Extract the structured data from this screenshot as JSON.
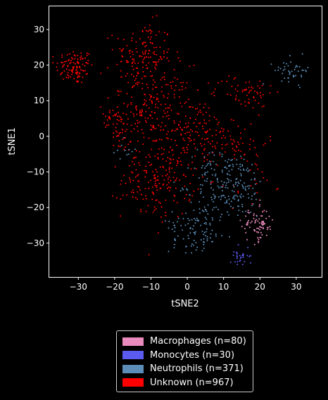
{
  "chart_data": {
    "type": "scatter",
    "title": "",
    "xlabel": "tSNE2",
    "ylabel": "tSNE1",
    "xlim": [
      -38,
      37
    ],
    "ylim": [
      -39.5,
      36.5
    ],
    "xticks": [
      -30,
      -20,
      -10,
      0,
      10,
      20,
      30
    ],
    "yticks": [
      -30,
      -20,
      -10,
      0,
      10,
      20,
      30
    ],
    "grid": false,
    "legend_position": "below plot",
    "background": "#000000",
    "series": [
      {
        "name": "Macrophages (n=80)",
        "color": "#e98bbd",
        "count": 80,
        "clusters": [
          {
            "cx": 19.5,
            "cy": -25,
            "sx": 2.2,
            "sy": 2.3,
            "n": 80
          }
        ]
      },
      {
        "name": "Monocytes (n=30)",
        "color": "#5b5bf0",
        "count": 30,
        "clusters": [
          {
            "cx": 14.5,
            "cy": -33.5,
            "sx": 1.3,
            "sy": 1.6,
            "n": 30
          }
        ]
      },
      {
        "name": "Neutrophils (n=371)",
        "color": "#5b8db8",
        "count": 371,
        "clusters": [
          {
            "cx": 12,
            "cy": -14,
            "sx": 5,
            "sy": 4.5,
            "n": 180
          },
          {
            "cx": 3,
            "cy": -24,
            "sx": 4,
            "sy": 3.5,
            "n": 80
          },
          {
            "cx": 2,
            "cy": -29,
            "sx": 3,
            "sy": 1.8,
            "n": 30
          },
          {
            "cx": 29,
            "cy": 18.5,
            "sx": 2.5,
            "sy": 1.8,
            "n": 45
          },
          {
            "cx": 7,
            "cy": -9,
            "sx": 4,
            "sy": 2.5,
            "n": 25
          },
          {
            "cx": -18,
            "cy": -4,
            "sx": 2,
            "sy": 1.5,
            "n": 11
          }
        ]
      },
      {
        "name": "Unknown (n=967)",
        "color": "#ff0000",
        "count": 967,
        "clusters": [
          {
            "cx": -31,
            "cy": 19.5,
            "sx": 2.6,
            "sy": 2.5,
            "n": 110
          },
          {
            "cx": -12,
            "cy": 23,
            "sx": 4,
            "sy": 4.5,
            "n": 140
          },
          {
            "cx": -10,
            "cy": 8,
            "sx": 5.5,
            "sy": 6,
            "n": 230
          },
          {
            "cx": -8,
            "cy": -12,
            "sx": 5,
            "sy": 5.5,
            "n": 200
          },
          {
            "cx": 3,
            "cy": 1,
            "sx": 5,
            "sy": 5,
            "n": 120
          },
          {
            "cx": 16,
            "cy": 12.5,
            "sx": 4,
            "sy": 2.5,
            "n": 60
          },
          {
            "cx": 14,
            "cy": -2,
            "sx": 4,
            "sy": 3,
            "n": 50
          },
          {
            "cx": -19,
            "cy": 3,
            "sx": 1.8,
            "sy": 2.5,
            "n": 37
          },
          {
            "cx": 18,
            "cy": -14,
            "sx": 3,
            "sy": 4,
            "n": 20
          }
        ]
      }
    ]
  },
  "legend": {
    "items": [
      {
        "label": "Macrophages (n=80)",
        "color": "#e98bbd"
      },
      {
        "label": "Monocytes (n=30)",
        "color": "#5b5bf0"
      },
      {
        "label": "Neutrophils (n=371)",
        "color": "#5b8db8"
      },
      {
        "label": "Unknown (n=967)",
        "color": "#ff0000"
      }
    ]
  }
}
